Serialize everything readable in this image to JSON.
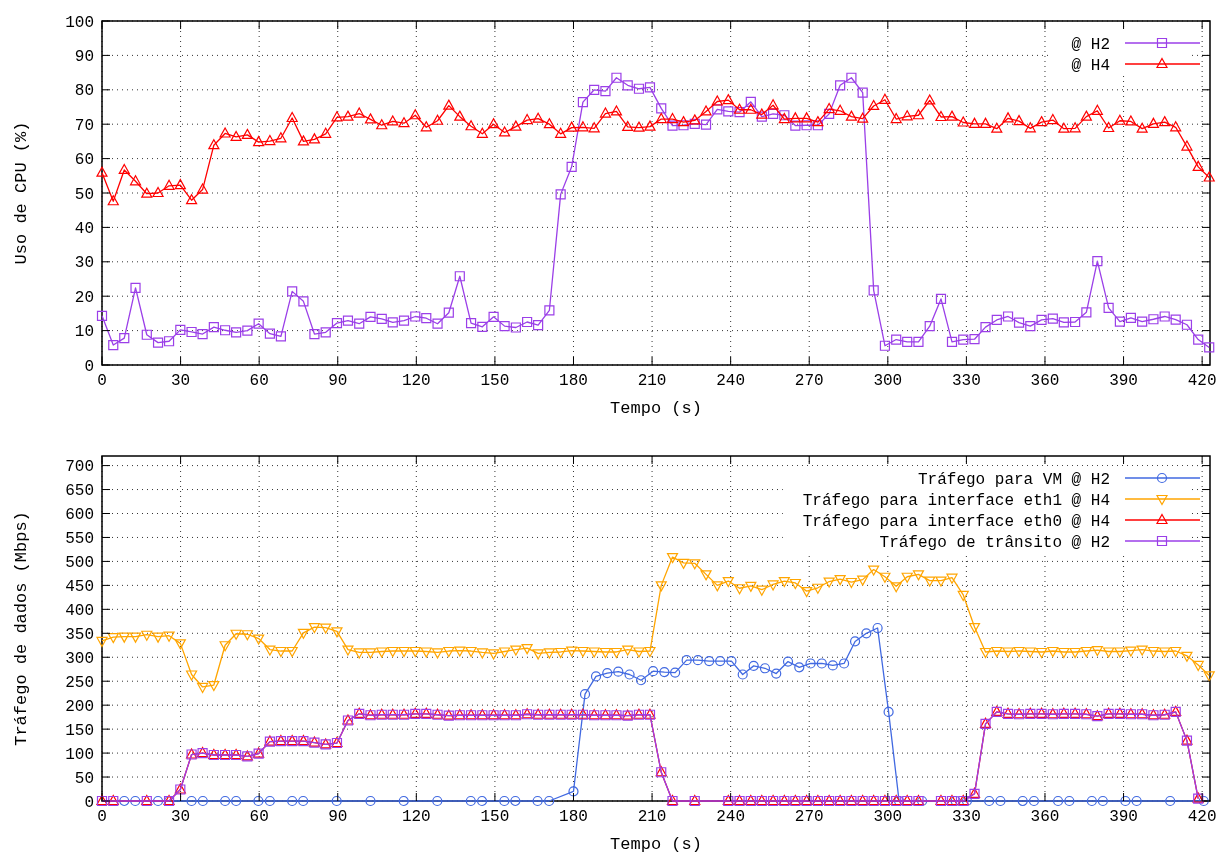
{
  "chart_data": [
    {
      "type": "line",
      "xlabel": "Tempo (s)",
      "ylabel": "Uso de CPU (%)",
      "xlim": [
        0,
        423
      ],
      "xticks": [
        0,
        30,
        60,
        90,
        120,
        150,
        180,
        210,
        240,
        270,
        300,
        330,
        360,
        390,
        420
      ],
      "ylim": [
        0,
        100
      ],
      "yticks": [
        0,
        10,
        20,
        30,
        40,
        50,
        60,
        70,
        80,
        90,
        100
      ],
      "grid": true,
      "legend": "top right",
      "line_style": "solid",
      "x": [
        0,
        4.3,
        8.5,
        12.8,
        17.1,
        21.4,
        25.6,
        29.9,
        34.2,
        38.4,
        42.7,
        47,
        51.2,
        55.5,
        59.8,
        64.1,
        68.3,
        72.6,
        76.9,
        81.1,
        85.4,
        89.7,
        93.9,
        98.2,
        102.5,
        106.8,
        111,
        115.3,
        119.6,
        123.8,
        128.1,
        132.4,
        136.6,
        140.9,
        145.2,
        149.5,
        153.7,
        158,
        162.3,
        166.5,
        170.8,
        175.1,
        179.3,
        183.6,
        187.9,
        192.2,
        196.4,
        200.7,
        205,
        209.2,
        213.5,
        217.8,
        222,
        226.3,
        230.6,
        234.9,
        239.1,
        243.4,
        247.7,
        251.9,
        256.2,
        260.5,
        264.7,
        269,
        273.3,
        277.6,
        281.8,
        286.1,
        290.4,
        294.6,
        298.9,
        303.2,
        307.4,
        311.7,
        316,
        320.3,
        324.5,
        328.8,
        333.1,
        337.3,
        341.6,
        345.9,
        350.1,
        354.4,
        358.7,
        363,
        367.2,
        371.5,
        375.8,
        380,
        384.3,
        388.6,
        392.8,
        397.1,
        401.4,
        405.7,
        409.9,
        414.2,
        418.5,
        422.7
      ],
      "series": [
        {
          "name": "@ H2",
          "color": "#9b3fe8",
          "marker": "square",
          "values": [
            14.3,
            5.8,
            7.8,
            22.4,
            8.8,
            6.5,
            6.9,
            10.2,
            9.6,
            9,
            11,
            10.1,
            9.5,
            10,
            12,
            9.1,
            8.3,
            21.4,
            18.5,
            9,
            9.5,
            12.2,
            12.9,
            12,
            14,
            13.4,
            12.4,
            12.9,
            14.1,
            13.6,
            12,
            15.2,
            25.8,
            12.2,
            11.1,
            14,
            11.3,
            10.9,
            12.5,
            11.6,
            15.9,
            49.6,
            57.6,
            76.4,
            80,
            79.6,
            83.5,
            81.3,
            80.3,
            80.7,
            74.6,
            69.6,
            69.7,
            70.1,
            69.9,
            74.3,
            73.7,
            73.5,
            76.5,
            72.2,
            73,
            72.6,
            69.6,
            69.7,
            69.7,
            73,
            81.3,
            83.5,
            79.2,
            21.7,
            5.6,
            7.4,
            6.7,
            6.7,
            11.3,
            19.2,
            6.7,
            7.4,
            7.5,
            11,
            13.1,
            14.1,
            12.3,
            11.3,
            13.1,
            13.5,
            12.4,
            12.5,
            15.3,
            30.2,
            16.6,
            12.6,
            13.7,
            12.6,
            13.3,
            14.1,
            13.2,
            11.7,
            7.4,
            5.1
          ]
        },
        {
          "name": "@ H4",
          "color": "#ff0000",
          "marker": "triangle",
          "values": [
            55.9,
            47.6,
            56.7,
            53.4,
            49.8,
            50,
            52.1,
            52.3,
            47.9,
            51,
            63.9,
            67.3,
            66.3,
            66.9,
            64.8,
            65.1,
            65.9,
            71.8,
            65,
            65.6,
            67.2,
            72,
            72.2,
            73.1,
            71.4,
            69.7,
            70.8,
            70.3,
            72.6,
            69.1,
            71,
            75.4,
            72.2,
            69.4,
            67.2,
            70,
            67.6,
            69.3,
            71.2,
            71.6,
            70,
            67.2,
            69,
            69.1,
            68.8,
            73.1,
            73.7,
            69.2,
            69,
            69.3,
            71.5,
            71.5,
            70.6,
            71.1,
            73.7,
            76.6,
            77,
            74.2,
            74.2,
            72.8,
            75.5,
            71.5,
            71.7,
            71.7,
            70.6,
            74.4,
            73.9,
            72.2,
            71.6,
            75.3,
            77.1,
            71.5,
            72.3,
            72.6,
            76.9,
            72.1,
            72.2,
            70.5,
            70.1,
            70.1,
            68.7,
            71.7,
            70.9,
            68.8,
            70.6,
            71.2,
            68.7,
            68.8,
            72.2,
            73.9,
            68.9,
            71,
            70.8,
            68.7,
            70.1,
            70.6,
            69.1,
            63.5,
            57.6,
            54.5
          ]
        }
      ]
    },
    {
      "type": "line",
      "xlabel": "Tempo (s)",
      "ylabel": "Tráfego de dados (Mbps)",
      "xlim": [
        0,
        423
      ],
      "xticks": [
        0,
        30,
        60,
        90,
        120,
        150,
        180,
        210,
        240,
        270,
        300,
        330,
        360,
        390,
        420
      ],
      "ylim": [
        0,
        720
      ],
      "yticks": [
        0,
        50,
        100,
        150,
        200,
        250,
        300,
        350,
        400,
        450,
        500,
        550,
        600,
        650,
        700
      ],
      "grid": true,
      "legend": "top right",
      "line_style": "solid",
      "x": [
        0,
        4.3,
        8.5,
        12.8,
        17.1,
        21.4,
        25.6,
        29.9,
        34.2,
        38.4,
        42.7,
        47,
        51.2,
        55.5,
        59.8,
        64.1,
        68.3,
        72.6,
        76.9,
        81.1,
        85.4,
        89.7,
        93.9,
        98.2,
        102.5,
        106.8,
        111,
        115.3,
        119.6,
        123.8,
        128.1,
        132.4,
        136.6,
        140.9,
        145.2,
        149.5,
        153.7,
        158,
        162.3,
        166.5,
        170.8,
        175.1,
        179.3,
        183.6,
        187.9,
        192.2,
        196.4,
        200.7,
        205,
        209.2,
        213.5,
        217.8,
        222,
        226.3,
        230.6,
        234.9,
        239.1,
        243.4,
        247.7,
        251.9,
        256.2,
        260.5,
        264.7,
        269,
        273.3,
        277.6,
        281.8,
        286.1,
        290.4,
        294.6,
        298.9,
        303.2,
        307.4,
        311.7,
        316,
        320.3,
        324.5,
        328.8,
        333.1,
        337.3,
        341.6,
        345.9,
        350.1,
        354.4,
        358.7,
        363,
        367.2,
        371.5,
        375.8,
        380,
        384.3,
        388.6,
        392.8,
        397.1,
        401.4,
        405.7,
        409.9,
        414.2,
        418.5,
        422.7
      ],
      "series": [
        {
          "name": "Tráfego para VM @ H2",
          "color": "#4169e1",
          "marker": "circle",
          "x": [
            8.5,
            12.7,
            21.4,
            25.6,
            34.2,
            38.5,
            47,
            51.2,
            59.7,
            64.1,
            72.6,
            76.8,
            89.6,
            102.5,
            115.2,
            128,
            140.8,
            145.1,
            153.6,
            157.8,
            166.3,
            170.7,
            180,
            184.4,
            188.6,
            192.9,
            197.1,
            201.4,
            205.8,
            210.4,
            214.7,
            218.8,
            223.2,
            227.5,
            231.8,
            236,
            240.3,
            244.6,
            248.8,
            253.1,
            257.4,
            261.9,
            266.2,
            270.5,
            274.8,
            279,
            283.3,
            287.5,
            291.8,
            296.1,
            300.3,
            304.3,
            313.1,
            325.9,
            330.2,
            338.7,
            343,
            351.5,
            355.8,
            365,
            369.3,
            377.9,
            382.1,
            390.7,
            395,
            407.8,
            420.6
          ],
          "values": [
            0,
            0,
            0,
            0,
            0,
            0,
            0,
            0,
            0,
            0,
            0,
            0,
            0,
            0,
            0,
            0,
            0,
            0,
            0,
            0,
            0,
            0,
            20,
            223,
            260,
            267,
            270,
            264,
            252,
            271,
            269,
            268,
            294,
            294,
            292,
            292,
            292,
            264,
            282,
            277,
            266,
            291,
            279,
            287,
            287,
            283,
            287,
            333,
            350,
            361,
            186,
            0,
            0,
            0,
            0,
            0,
            0,
            0,
            0,
            0,
            0,
            0,
            0,
            0,
            0,
            0,
            0
          ]
        },
        {
          "name": "Tráfego para interface eth1 @ H4",
          "color": "#ffa500",
          "marker": "triangle-down",
          "values": [
            334,
            342,
            343,
            343,
            347,
            343,
            345,
            329,
            264,
            238,
            242,
            325,
            349,
            348,
            339,
            316,
            313,
            313,
            351,
            363,
            362,
            354,
            316,
            310,
            310,
            312,
            313,
            313,
            313,
            312,
            310,
            313,
            314,
            313,
            310,
            308,
            312,
            316,
            319,
            308,
            310,
            311,
            314,
            313,
            312,
            311,
            311,
            316,
            312,
            313,
            450,
            509,
            497,
            496,
            473,
            450,
            459,
            444,
            449,
            441,
            452,
            459,
            455,
            438,
            445,
            458,
            463,
            457,
            462,
            483,
            468,
            448,
            468,
            473,
            460,
            460,
            466,
            430,
            363,
            311,
            313,
            312,
            313,
            312,
            311,
            313,
            311,
            311,
            313,
            315,
            312,
            312,
            314,
            316,
            313,
            312,
            313,
            303,
            284,
            262
          ]
        },
        {
          "name": "Tráfego para interface eth0 @ H4",
          "color": "#ff0000",
          "marker": "triangle",
          "x": [
            0,
            4.3,
            17.1,
            25.6,
            29.9,
            34.2,
            38.4,
            42.7,
            47,
            51.2,
            55.5,
            59.8,
            64.1,
            68.3,
            72.6,
            76.9,
            81.1,
            85.4,
            89.7,
            93.9,
            98.2,
            102.5,
            106.8,
            111,
            115.3,
            119.6,
            123.8,
            128.1,
            132.4,
            136.6,
            140.9,
            145.2,
            149.5,
            153.7,
            158,
            162.3,
            166.5,
            170.8,
            175.1,
            179.3,
            183.6,
            187.9,
            192.2,
            196.4,
            200.7,
            205,
            209.2,
            213.5,
            217.8,
            226.3,
            239.1,
            243.4,
            247.7,
            251.9,
            256.2,
            260.5,
            264.7,
            269,
            273.3,
            277.6,
            281.8,
            286.1,
            290.4,
            294.6,
            298.9,
            303.2,
            307.4,
            311.7,
            320.3,
            324.5,
            328.8,
            333.1,
            337.3,
            341.6,
            345.9,
            350.1,
            354.4,
            358.7,
            363,
            367.2,
            371.5,
            375.8,
            380,
            384.3,
            388.6,
            392.8,
            397.1,
            401.4,
            405.7,
            409.9,
            414.2,
            418.5
          ],
          "values": [
            0,
            0,
            0,
            0,
            24,
            97,
            100,
            96,
            96,
            96,
            93,
            99,
            124,
            125,
            125,
            125,
            122,
            118,
            121,
            168,
            182,
            179,
            180,
            180,
            180,
            182,
            182,
            180,
            178,
            179,
            179,
            179,
            179,
            179,
            179,
            181,
            180,
            180,
            180,
            180,
            180,
            179,
            179,
            179,
            178,
            180,
            180,
            60,
            0,
            0,
            0,
            0,
            0,
            0,
            0,
            0,
            0,
            0,
            0,
            0,
            0,
            0,
            0,
            0,
            0,
            0,
            0,
            0,
            0,
            0,
            0,
            15,
            161,
            186,
            182,
            181,
            182,
            182,
            181,
            182,
            182,
            181,
            177,
            182,
            182,
            181,
            181,
            179,
            180,
            186,
            126,
            5
          ]
        },
        {
          "name": "Tráfego de trânsito @ H2",
          "color": "#9b3fe8",
          "marker": "square",
          "x": [
            0,
            4.3,
            17.1,
            25.6,
            29.9,
            34.2,
            38.4,
            42.7,
            47,
            51.2,
            55.5,
            59.8,
            64.1,
            68.3,
            72.6,
            76.9,
            81.1,
            85.4,
            89.7,
            93.9,
            98.2,
            102.5,
            106.8,
            111,
            115.3,
            119.6,
            123.8,
            128.1,
            132.4,
            136.6,
            140.9,
            145.2,
            149.5,
            153.7,
            158,
            162.3,
            166.5,
            170.8,
            175.1,
            179.3,
            183.6,
            187.9,
            192.2,
            196.4,
            200.7,
            205,
            209.2,
            213.5,
            217.8,
            226.3,
            239.1,
            243.4,
            247.7,
            251.9,
            256.2,
            260.5,
            264.7,
            269,
            273.3,
            277.6,
            281.8,
            286.1,
            290.4,
            294.6,
            298.9,
            303.2,
            307.4,
            311.7,
            320.3,
            324.5,
            328.8,
            333.1,
            337.3,
            341.6,
            345.9,
            350.1,
            354.4,
            358.7,
            363,
            367.2,
            371.5,
            375.8,
            380,
            384.3,
            388.6,
            392.8,
            397.1,
            401.4,
            405.7,
            409.9,
            414.2,
            418.5
          ],
          "values": [
            0,
            0,
            0,
            0,
            24,
            97,
            100,
            96,
            96,
            96,
            93,
            99,
            124,
            125,
            125,
            125,
            122,
            118,
            121,
            168,
            182,
            179,
            180,
            180,
            180,
            182,
            182,
            180,
            178,
            179,
            179,
            179,
            179,
            179,
            179,
            181,
            180,
            180,
            180,
            180,
            180,
            179,
            179,
            179,
            178,
            180,
            180,
            60,
            0,
            0,
            0,
            0,
            0,
            0,
            0,
            0,
            0,
            0,
            0,
            0,
            0,
            0,
            0,
            0,
            0,
            0,
            0,
            0,
            0,
            0,
            0,
            15,
            161,
            186,
            182,
            181,
            182,
            182,
            181,
            182,
            182,
            181,
            177,
            182,
            182,
            181,
            181,
            179,
            180,
            186,
            126,
            5
          ]
        }
      ]
    }
  ]
}
